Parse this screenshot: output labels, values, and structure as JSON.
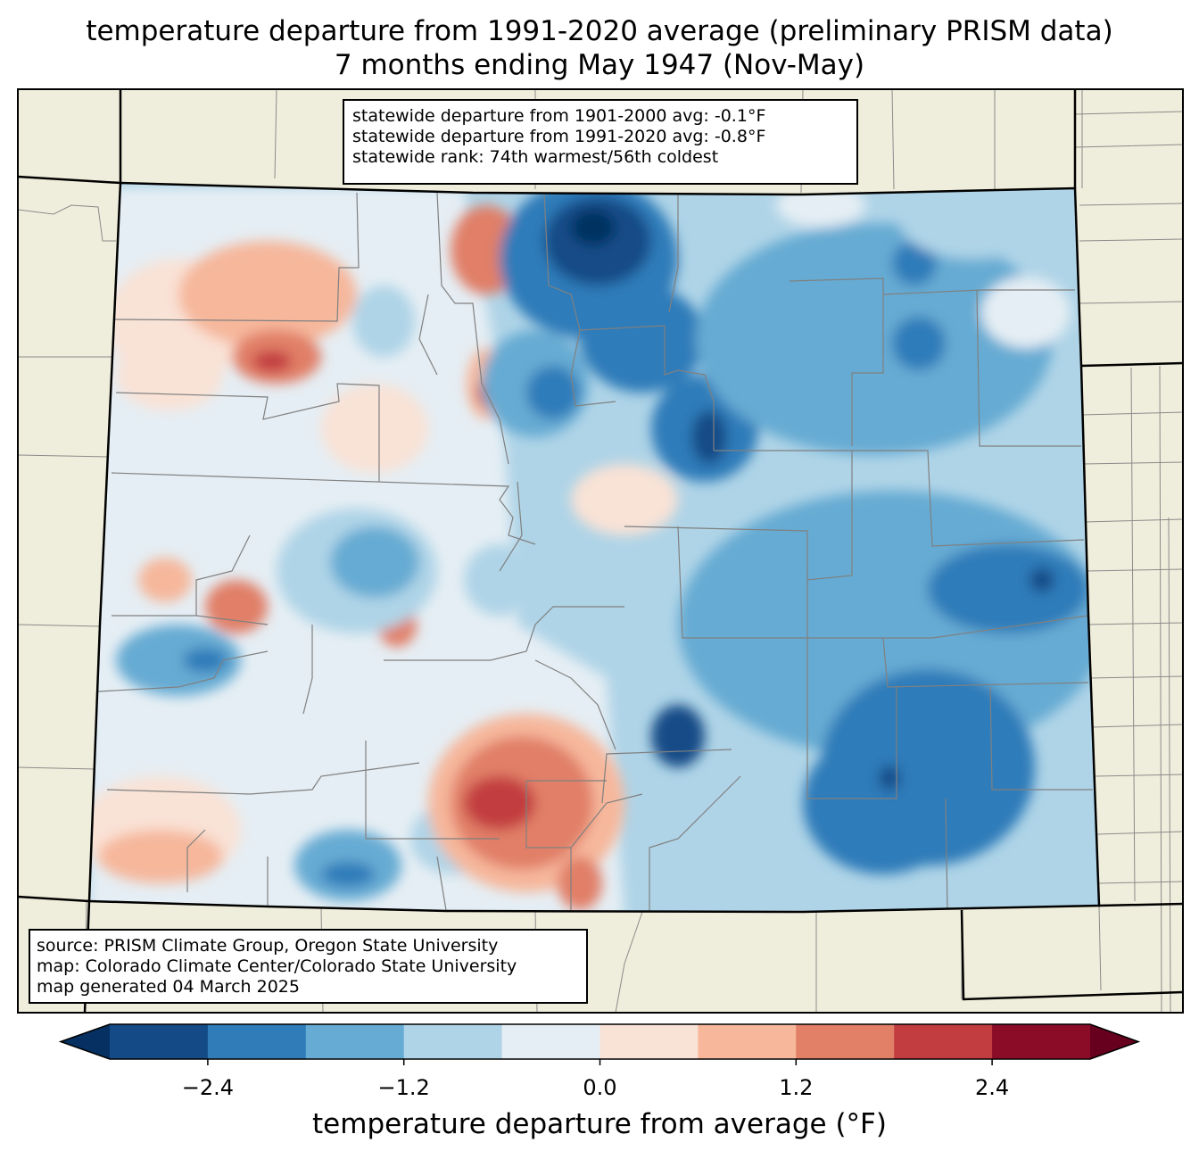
{
  "title": {
    "line1": "temperature departure from 1991-2020 average (preliminary PRISM data)",
    "line2": "7 months ending May 1947 (Nov-May)"
  },
  "stats": {
    "line1": "statewide departure from 1901-2000 avg: -0.1°F",
    "line2": "statewide departure from 1991-2020 avg: -0.8°F",
    "line3": "statewide rank: 74th warmest/56th coldest"
  },
  "source": {
    "line1": "source: PRISM Climate Group, Oregon State University",
    "line2": "map: Colorado Climate Center/Colorado State University",
    "line3": "map generated 04 March 2025"
  },
  "colorbar": {
    "label": "temperature departure from average (°F)",
    "ticks": [
      "−2.4",
      "−1.2",
      "0.0",
      "1.2",
      "2.4"
    ],
    "tick_values": [
      -2.4,
      -1.2,
      0.0,
      1.2,
      2.4
    ],
    "bounds": [
      -3.0,
      -2.4,
      -1.8,
      -1.2,
      -0.6,
      0.0,
      0.6,
      1.2,
      1.8,
      2.4,
      3.0
    ],
    "extend": "both",
    "colors": {
      "under": "#053061",
      "bins": [
        "#144b87",
        "#2f7cb9",
        "#66abd3",
        "#afd4e7",
        "#e5eef4",
        "#f9e2d6",
        "#f6b79b",
        "#e17f67",
        "#c23d3f",
        "#8a0c27"
      ],
      "over": "#67001f"
    }
  },
  "map": {
    "background": "#efeedc",
    "region": "Colorado"
  }
}
